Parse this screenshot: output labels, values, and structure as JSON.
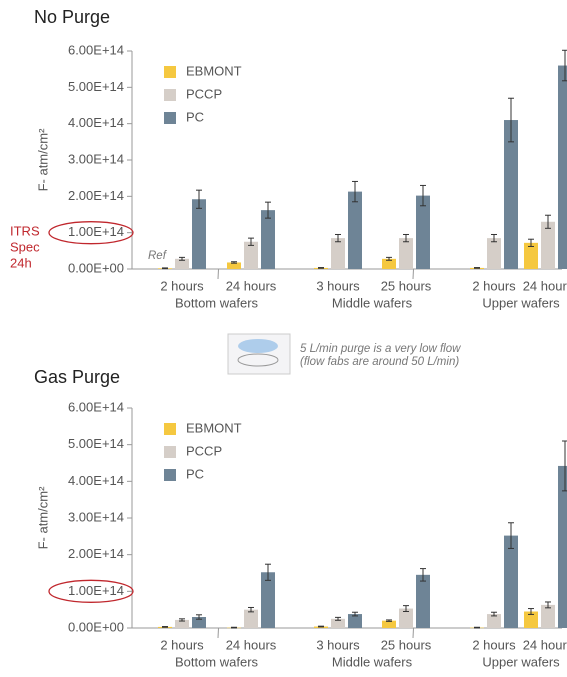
{
  "chart_data": [
    {
      "type": "bar",
      "title": "No Purge",
      "y_label": "F- atm/cm²",
      "categories": [
        "2 hours",
        "24 hours",
        "3 hours",
        "25 hours",
        "2 hours",
        "24 hours"
      ],
      "groups": [
        "Bottom wafers",
        "Middle wafers",
        "Upper wafers"
      ],
      "series": [
        {
          "name": "EBMONT",
          "color": "#f5c840",
          "values": [
            2000000000000.0,
            18000000000000.0,
            3000000000000.0,
            28000000000000.0,
            3000000000000.0,
            72000000000000.0
          ],
          "errors": [
            1000000000000.0,
            2000000000000.0,
            1000000000000.0,
            4000000000000.0,
            1000000000000.0,
            10000000000000.0
          ]
        },
        {
          "name": "PCCP",
          "color": "#d5cec8",
          "values": [
            28000000000000.0,
            75000000000000.0,
            85000000000000.0,
            85000000000000.0,
            85000000000000.0,
            130000000000000.0
          ],
          "errors": [
            4000000000000.0,
            10000000000000.0,
            10000000000000.0,
            10000000000000.0,
            10000000000000.0,
            18000000000000.0
          ]
        },
        {
          "name": "PC",
          "color": "#6e8496",
          "values": [
            192000000000000.0,
            162000000000000.0,
            213000000000000.0,
            202000000000000.0,
            410000000000000.0,
            560000000000000.0
          ],
          "errors": [
            25000000000000.0,
            22000000000000.0,
            28000000000000.0,
            28000000000000.0,
            60000000000000.0,
            42000000000000.0
          ]
        }
      ],
      "ylim": [
        0,
        600000000000000.0
      ],
      "yticks": [
        {
          "value": 0,
          "label": "0.00E+00"
        },
        {
          "value": 100000000000000.0,
          "label": "1.00E+14"
        },
        {
          "value": 200000000000000.0,
          "label": "2.00E+14"
        },
        {
          "value": 300000000000000.0,
          "label": "3.00E+14"
        },
        {
          "value": 400000000000000.0,
          "label": "4.00E+14"
        },
        {
          "value": 500000000000000.0,
          "label": "5.00E+14"
        },
        {
          "value": 600000000000000.0,
          "label": "6.00E+14"
        }
      ],
      "legend": "top-left",
      "ref_label": "Ref",
      "spec_label": [
        "ITRS",
        "Spec",
        "24h"
      ]
    },
    {
      "type": "bar",
      "title": "Gas Purge",
      "y_label": "F- atm/cm²",
      "categories": [
        "2 hours",
        "24 hours",
        "3 hours",
        "25 hours",
        "2 hours",
        "24 hours"
      ],
      "groups": [
        "Bottom wafers",
        "Middle wafers",
        "Upper wafers"
      ],
      "series": [
        {
          "name": "EBMONT",
          "color": "#f5c840",
          "values": [
            3000000000000.0,
            1000000000000.0,
            4000000000000.0,
            20000000000000.0,
            1000000000000.0,
            45000000000000.0
          ],
          "errors": [
            1000000000000.0,
            1000000000000.0,
            1000000000000.0,
            2000000000000.0,
            1000000000000.0,
            8000000000000.0
          ]
        },
        {
          "name": "PCCP",
          "color": "#d5cec8",
          "values": [
            22000000000000.0,
            50000000000000.0,
            25000000000000.0,
            53000000000000.0,
            38000000000000.0,
            63000000000000.0
          ],
          "errors": [
            3000000000000.0,
            6000000000000.0,
            4000000000000.0,
            8000000000000.0,
            5000000000000.0,
            8000000000000.0
          ]
        },
        {
          "name": "PC",
          "color": "#6e8496",
          "values": [
            30000000000000.0,
            152000000000000.0,
            38000000000000.0,
            145000000000000.0,
            252000000000000.0,
            442000000000000.0
          ],
          "errors": [
            6000000000000.0,
            22000000000000.0,
            5000000000000.0,
            17000000000000.0,
            35000000000000.0,
            68000000000000.0
          ]
        }
      ],
      "ylim": [
        0,
        600000000000000.0
      ],
      "yticks": [
        {
          "value": 0,
          "label": "0.00E+00"
        },
        {
          "value": 100000000000000.0,
          "label": "1.00E+14"
        },
        {
          "value": 200000000000000.0,
          "label": "2.00E+14"
        },
        {
          "value": 300000000000000.0,
          "label": "3.00E+14"
        },
        {
          "value": 400000000000000.0,
          "label": "4.00E+14"
        },
        {
          "value": 500000000000000.0,
          "label": "5.00E+14"
        },
        {
          "value": 600000000000000.0,
          "label": "6.00E+14"
        }
      ],
      "legend": "top-left"
    }
  ],
  "note": [
    "5 L/min purge is a very low flow",
    "(flow fabs are around 50 L/min)"
  ]
}
